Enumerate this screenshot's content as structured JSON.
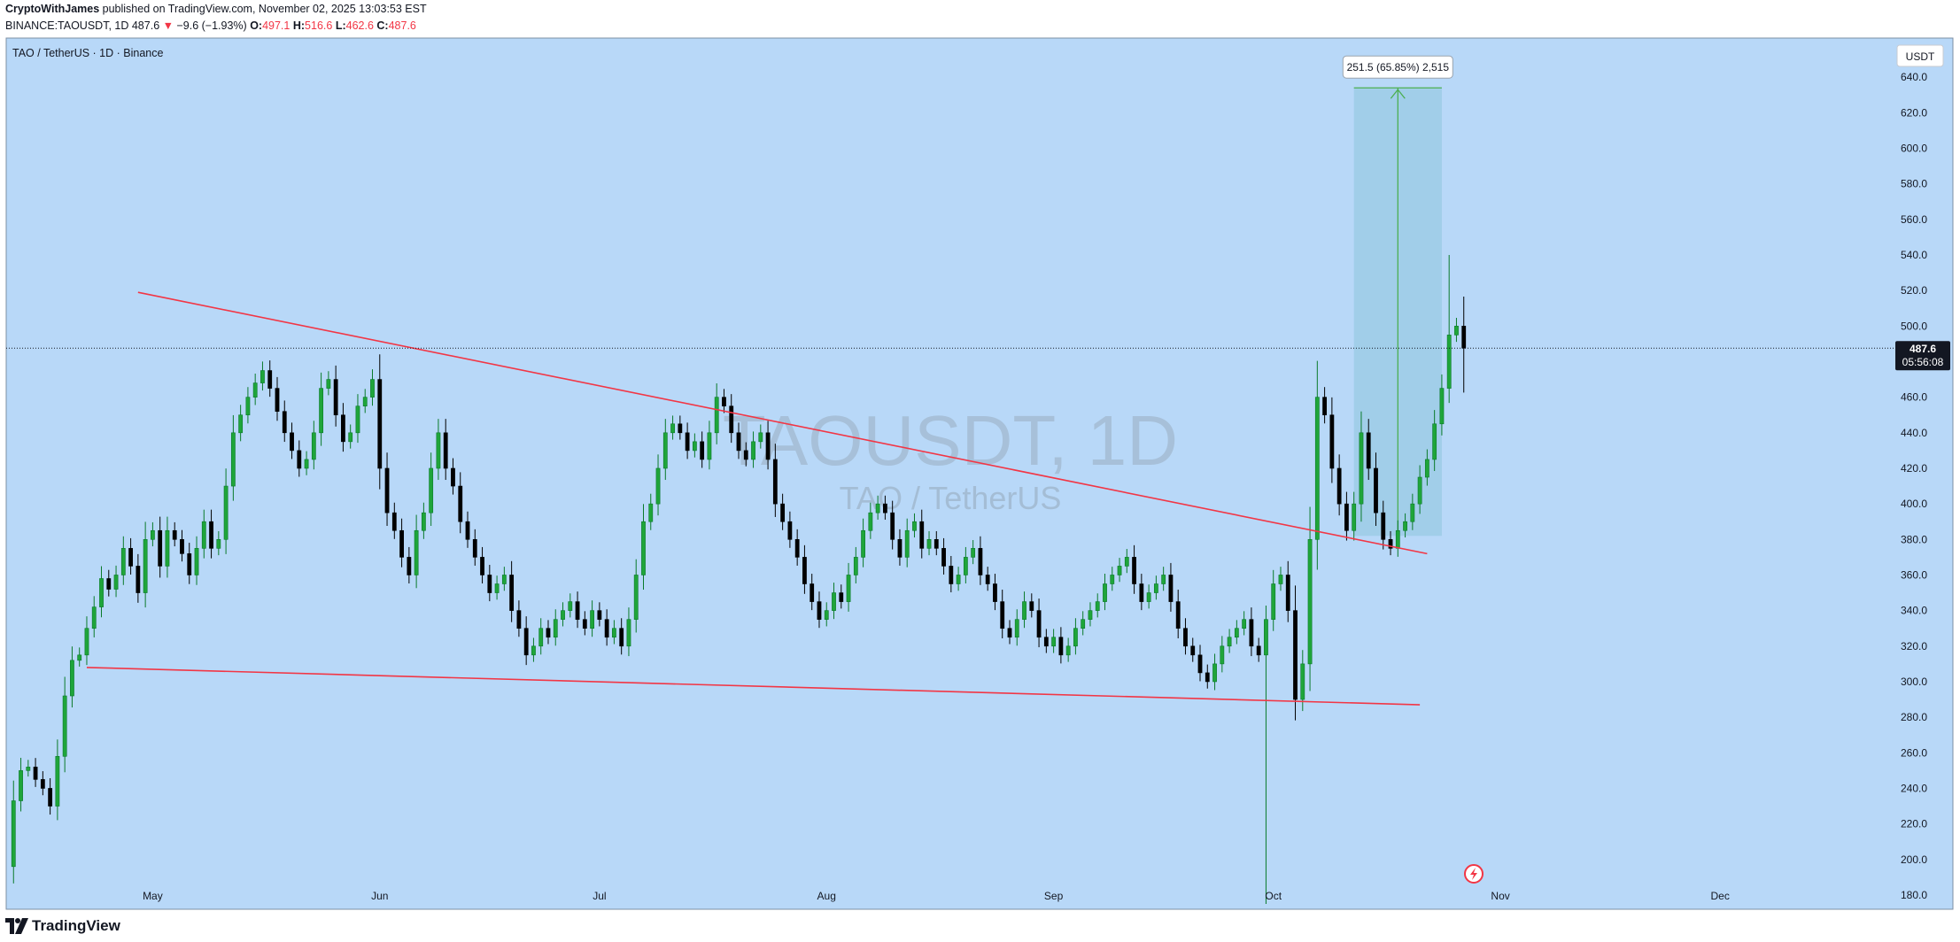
{
  "header": {
    "author": "CryptoWithJames",
    "published_text": " published on TradingView.com, November 02, 2025 13:03:53 EST",
    "symbol_line": "BINANCE:TAOUSDT, 1D",
    "last": "487.6",
    "down_arrow": "▼",
    "change": "−9.6 (−1.93%)",
    "o_label": "O:",
    "o_value": "497.1",
    "h_label": "H:",
    "h_value": "516.6",
    "l_label": "L:",
    "l_value": "462.6",
    "c_label": "C:",
    "c_value": "487.6"
  },
  "chart": {
    "pane_title": "TAO / TetherUS · 1D · Binance",
    "watermark_symbol": "TAOUSDT, 1D",
    "watermark_name": "TAO / TetherUS",
    "currency_button": "USDT",
    "price_tag": "487.6",
    "countdown": "05:56:08",
    "measure_label": "251.5 (65.85%) 2,515"
  },
  "colors": {
    "background": "#b8d8f8",
    "up_candle": "#089981",
    "up_fill": "#1fa53a",
    "down_candle": "#000000",
    "trendline": "#f23645",
    "measure_box": "#9ccde6",
    "measure_arrow": "#4caf50"
  },
  "footer": {
    "brand": "TradingView",
    "logo_icon": "tradingview-logo-icon"
  },
  "chart_data": {
    "type": "candlestick",
    "symbol": "TAOUSDT",
    "timeframe": "1D",
    "y_ticks": [
      180,
      200,
      220,
      240,
      260,
      280,
      300,
      320,
      340,
      360,
      380,
      400,
      420,
      440,
      460,
      480,
      500,
      520,
      540,
      560,
      580,
      600,
      620,
      640
    ],
    "y_tick_labels": [
      "180.0",
      "200.0",
      "220.0",
      "240.0",
      "260.0",
      "280.0",
      "300.0",
      "320.0",
      "340.0",
      "360.0",
      "380.0",
      "400.0",
      "420.0",
      "440.0",
      "460.0",
      "",
      "500.0",
      "520.0",
      "540.0",
      "560.0",
      "580.0",
      "600.0",
      "620.0",
      "640.0"
    ],
    "ylim": [
      172,
      662
    ],
    "x_ticks": [
      "May",
      "Jun",
      "Jul",
      "Aug",
      "Sep",
      "Oct",
      "Nov",
      "Dec"
    ],
    "x_tick_days": [
      20,
      51,
      81,
      112,
      143,
      173,
      204,
      234
    ],
    "xlim": [
      0,
      270
    ],
    "current_price": 487.6,
    "closes": [
      196,
      233,
      250,
      252,
      245,
      240,
      230,
      258,
      292,
      312,
      315,
      330,
      342,
      358,
      352,
      360,
      375,
      365,
      350,
      380,
      385,
      365,
      385,
      380,
      372,
      360,
      375,
      390,
      375,
      380,
      410,
      440,
      450,
      460,
      468,
      475,
      465,
      452,
      440,
      430,
      420,
      425,
      440,
      465,
      470,
      450,
      435,
      440,
      455,
      460,
      470,
      420,
      395,
      385,
      370,
      360,
      385,
      395,
      420,
      440,
      420,
      410,
      390,
      380,
      370,
      360,
      350,
      355,
      360,
      340,
      330,
      315,
      320,
      330,
      325,
      335,
      340,
      345,
      335,
      330,
      340,
      335,
      325,
      330,
      320,
      335,
      360,
      390,
      400,
      420,
      440,
      445,
      440,
      430,
      435,
      425,
      440,
      460,
      455,
      440,
      430,
      425,
      435,
      440,
      425,
      400,
      390,
      380,
      370,
      355,
      345,
      335,
      340,
      350,
      345,
      360,
      370,
      385,
      395,
      400,
      395,
      380,
      370,
      385,
      390,
      375,
      380,
      375,
      365,
      355,
      360,
      370,
      375,
      360,
      355,
      345,
      330,
      325,
      335,
      345,
      340,
      325,
      320,
      325,
      315,
      320,
      330,
      335,
      340,
      345,
      355,
      360,
      365,
      370,
      355,
      345,
      350,
      355,
      360,
      345,
      330,
      320,
      315,
      305,
      300,
      310,
      320,
      325,
      330,
      335,
      320,
      315,
      335,
      355,
      360,
      340,
      290,
      310,
      380,
      460,
      450,
      420,
      400,
      385,
      400,
      440,
      420,
      395,
      380,
      375,
      385,
      390,
      400,
      415,
      425,
      445,
      465,
      495,
      500,
      487.6
    ],
    "overlays": {
      "upper_trendline": [
        [
          18,
          519
        ],
        [
          194,
          372
        ]
      ],
      "lower_trendline": [
        [
          11,
          308
        ],
        [
          193,
          287
        ]
      ],
      "price_range_measure": {
        "from_day": 184,
        "to_day": 196,
        "low": 382,
        "high": 634,
        "label": "251.5 (65.85%) 2,515"
      }
    }
  }
}
